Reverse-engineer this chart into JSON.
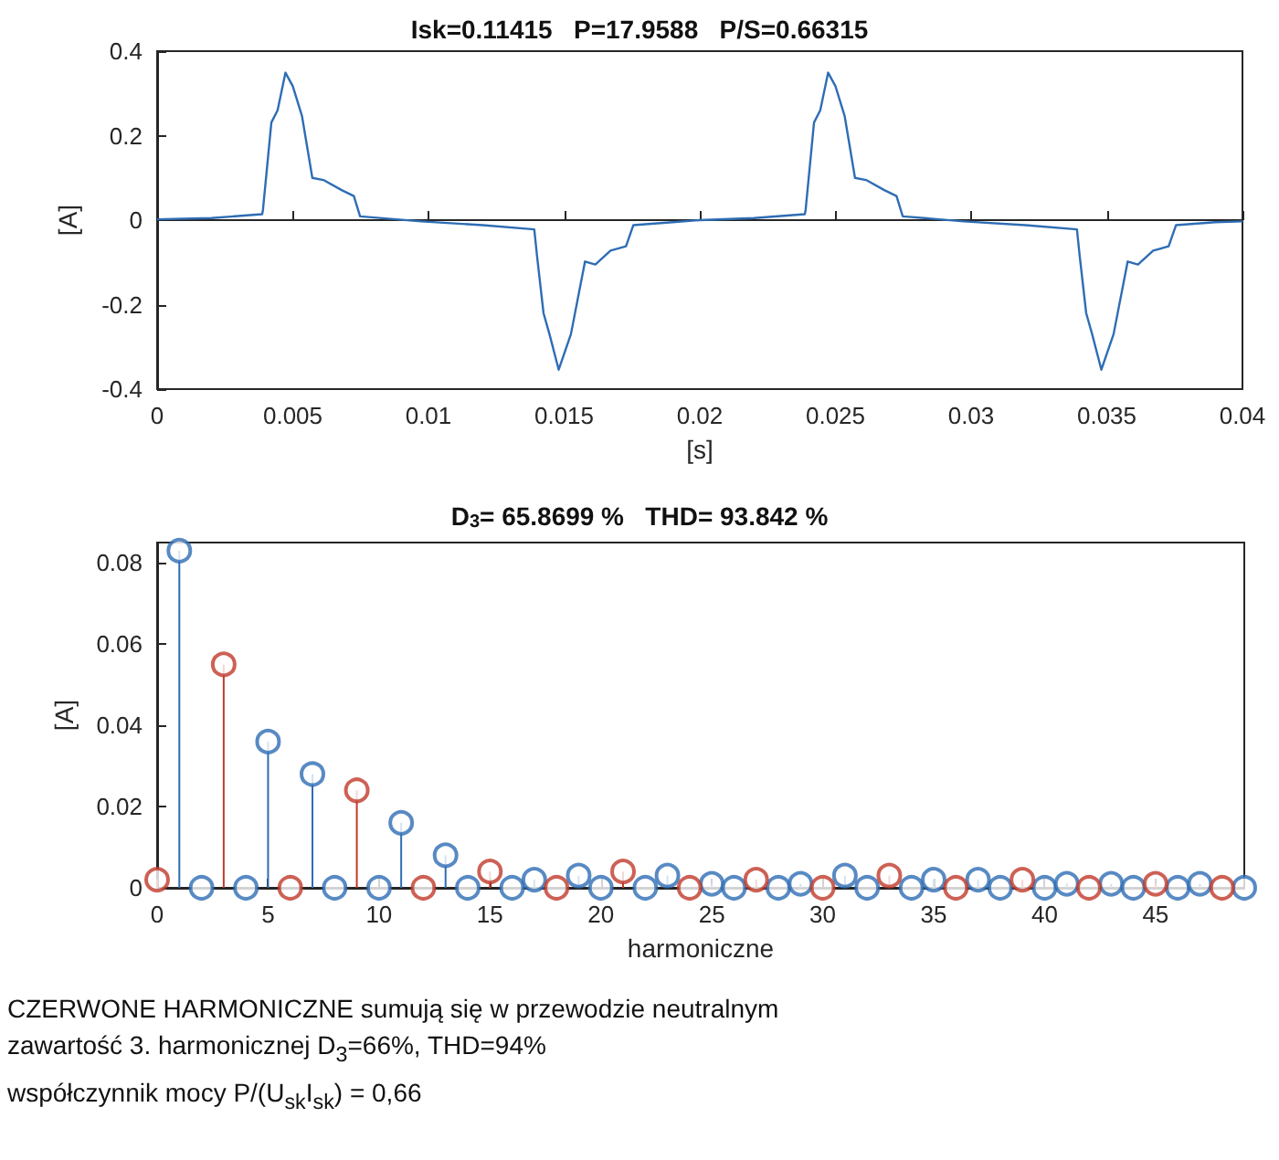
{
  "chart_data": [
    {
      "type": "line",
      "title": "Isk=0.11415   P=17.9588   P/S=0.66315",
      "xlabel": "[s]",
      "ylabel": "[A]",
      "x": [
        0,
        0.002,
        0.00387,
        0.0039,
        0.00421,
        0.00444,
        0.00473,
        0.005,
        0.00534,
        0.00572,
        0.00613,
        0.0068,
        0.00725,
        0.00748,
        0.00973,
        0.012,
        0.0139,
        0.014,
        0.01424,
        0.01446,
        0.0148,
        0.01525,
        0.01577,
        0.01615,
        0.01671,
        0.01728,
        0.01755,
        0.019,
        0.02,
        0.022,
        0.02387,
        0.0239,
        0.02421,
        0.02444,
        0.02473,
        0.025,
        0.02534,
        0.02572,
        0.02613,
        0.0268,
        0.02725,
        0.02748,
        0.02973,
        0.032,
        0.0339,
        0.034,
        0.03424,
        0.03446,
        0.0348,
        0.03525,
        0.03577,
        0.03615,
        0.03671,
        0.03728,
        0.03755,
        0.039,
        0.04
      ],
      "series": [
        {
          "color": "#2e6db4",
          "values": [
            0.002,
            0.005,
            0.014,
            0.024,
            0.231,
            0.26,
            0.349,
            0.317,
            0.246,
            0.1,
            0.095,
            0.071,
            0.057,
            0.009,
            -0.003,
            -0.012,
            -0.022,
            -0.084,
            -0.22,
            -0.27,
            -0.354,
            -0.27,
            -0.098,
            -0.105,
            -0.072,
            -0.062,
            -0.012,
            -0.005,
            0.0,
            0.005,
            0.014,
            0.024,
            0.231,
            0.26,
            0.349,
            0.317,
            0.246,
            0.1,
            0.095,
            0.071,
            0.057,
            0.009,
            -0.003,
            -0.012,
            -0.022,
            -0.084,
            -0.22,
            -0.27,
            -0.354,
            -0.27,
            -0.098,
            -0.105,
            -0.072,
            -0.062,
            -0.012,
            -0.005,
            -0.003
          ]
        }
      ],
      "xlim": [
        0,
        0.04
      ],
      "xticks": [
        0,
        0.005,
        0.01,
        0.015,
        0.02,
        0.025,
        0.03,
        0.035,
        0.04
      ],
      "ylim": [
        -0.4,
        0.4
      ],
      "yticks": [
        -0.4,
        -0.2,
        0,
        0.2,
        0.4
      ]
    },
    {
      "type": "lollipop",
      "title": "D$_{3}$= 65.8699 %   THD= 93.842 %",
      "xlabel": "harmoniczne",
      "ylabel": "[A]",
      "marker": "circle",
      "series": [
        {
          "color": "#2e6db4",
          "x": [
            1,
            2,
            4,
            5,
            7,
            8,
            10,
            11,
            13,
            14,
            16,
            17,
            19,
            20,
            22,
            23,
            25,
            26,
            28,
            29,
            31,
            32,
            34,
            35,
            37,
            38,
            40,
            41,
            43,
            44,
            46,
            47,
            49
          ],
          "values": [
            0.083,
            0,
            0,
            0.036,
            0.028,
            0,
            0,
            0.016,
            0.008,
            0,
            0,
            0.002,
            0.003,
            0,
            0,
            0.003,
            0.001,
            0,
            0,
            0.001,
            0.003,
            0,
            0,
            0.002,
            0.002,
            0,
            0,
            0.001,
            0.001,
            0,
            0,
            0.001,
            0
          ]
        },
        {
          "color": "#c0392b",
          "x": [
            0,
            3,
            6,
            9,
            12,
            15,
            18,
            21,
            24,
            27,
            30,
            33,
            36,
            39,
            42,
            45,
            48
          ],
          "values": [
            0.002,
            0.055,
            0,
            0.024,
            0,
            0.004,
            0,
            0.004,
            0,
            0.002,
            0,
            0.003,
            0,
            0.002,
            0,
            0.001,
            0
          ]
        }
      ],
      "xlim": [
        0,
        49
      ],
      "xticks": [
        0,
        5,
        10,
        15,
        20,
        25,
        30,
        35,
        40,
        45
      ],
      "ylim": [
        0,
        0.085
      ],
      "yticks": [
        0,
        0.02,
        0.04,
        0.06,
        0.08
      ],
      "annotations": [
        "CZERWONE HARMONICZNE sumują się w przewodzie neutralnym",
        "zawartość 3. harmonicznej D$_{3}$=66%, THD=94%",
        "współczynnik mocy P/(U$_{sk}$I$_{sk}$) = 0,66"
      ]
    }
  ]
}
